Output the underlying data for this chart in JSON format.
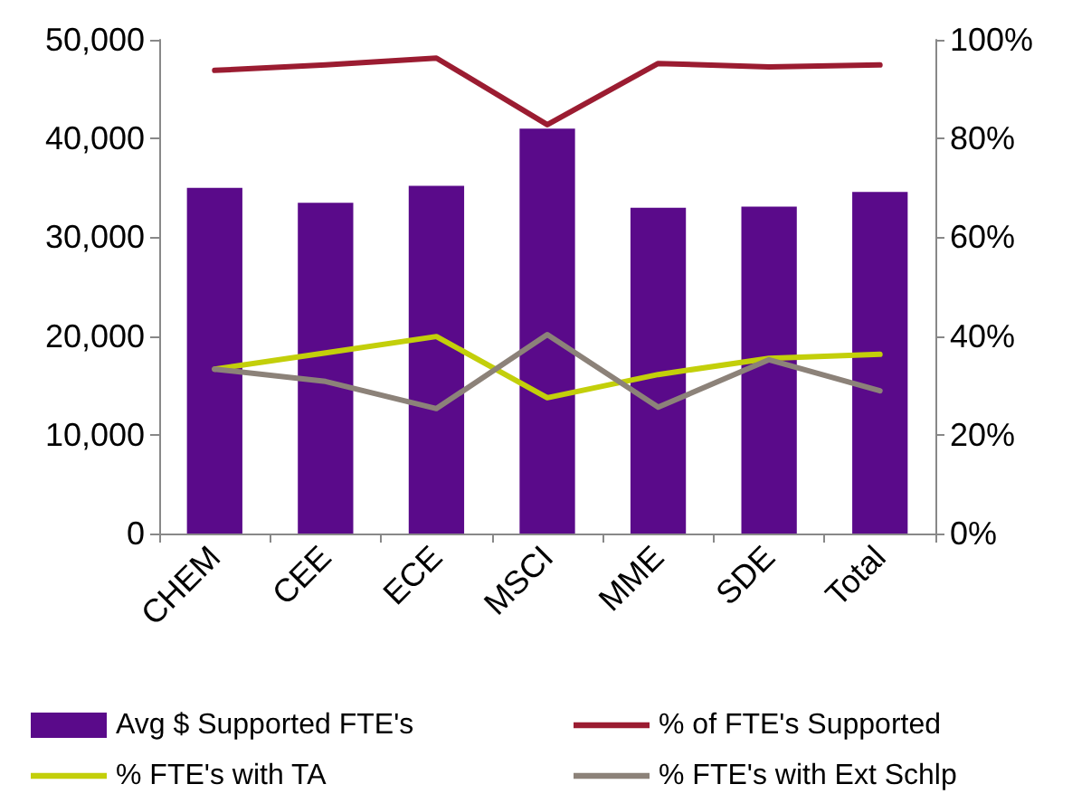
{
  "chart_data": {
    "type": "bar",
    "categories": [
      "CHEM",
      "CEE",
      "ECE",
      "MSCI",
      "MME",
      "SDE",
      "Total"
    ],
    "series": [
      {
        "name": "Avg $ Supported FTE's",
        "color": "#5a0a8a",
        "values": [
          35000,
          33500,
          35200,
          41000,
          33000,
          33100,
          34600
        ]
      },
      {
        "name": "% of FTE's Supported",
        "type": "line",
        "axis": "y2",
        "color": "#9b1c31",
        "values": [
          93.8,
          94.9,
          96.3,
          82.8,
          95.2,
          94.5,
          94.9
        ]
      },
      {
        "name": "% FTE's with TA",
        "type": "line",
        "axis": "y2",
        "color": "#c3cf0a",
        "values": [
          33.3,
          36.6,
          39.9,
          27.5,
          32.2,
          35.5,
          36.3
        ]
      },
      {
        "name": "% FTE's with Ext Schlp",
        "type": "line",
        "axis": "y2",
        "color": "#8c8279",
        "values": [
          33.3,
          30.8,
          25.3,
          40.3,
          25.6,
          35.2,
          28.9
        ]
      }
    ],
    "ylim": [
      0,
      50000
    ],
    "yticks": [
      {
        "value": 0,
        "label": "0"
      },
      {
        "value": 10000,
        "label": "10,000"
      },
      {
        "value": 20000,
        "label": "20,000"
      },
      {
        "value": 30000,
        "label": "30,000"
      },
      {
        "value": 40000,
        "label": "40,000"
      },
      {
        "value": 50000,
        "label": "50,000"
      }
    ],
    "y2lim": [
      0,
      100
    ],
    "y2ticks": [
      {
        "value": 0,
        "label": "0%"
      },
      {
        "value": 20,
        "label": "20%"
      },
      {
        "value": 40,
        "label": "40%"
      },
      {
        "value": 60,
        "label": "60%"
      },
      {
        "value": 80,
        "label": "80%"
      },
      {
        "value": 100,
        "label": "100%"
      }
    ],
    "grid": false,
    "legend": "bottom",
    "marker": "none",
    "line_style": "solid"
  }
}
